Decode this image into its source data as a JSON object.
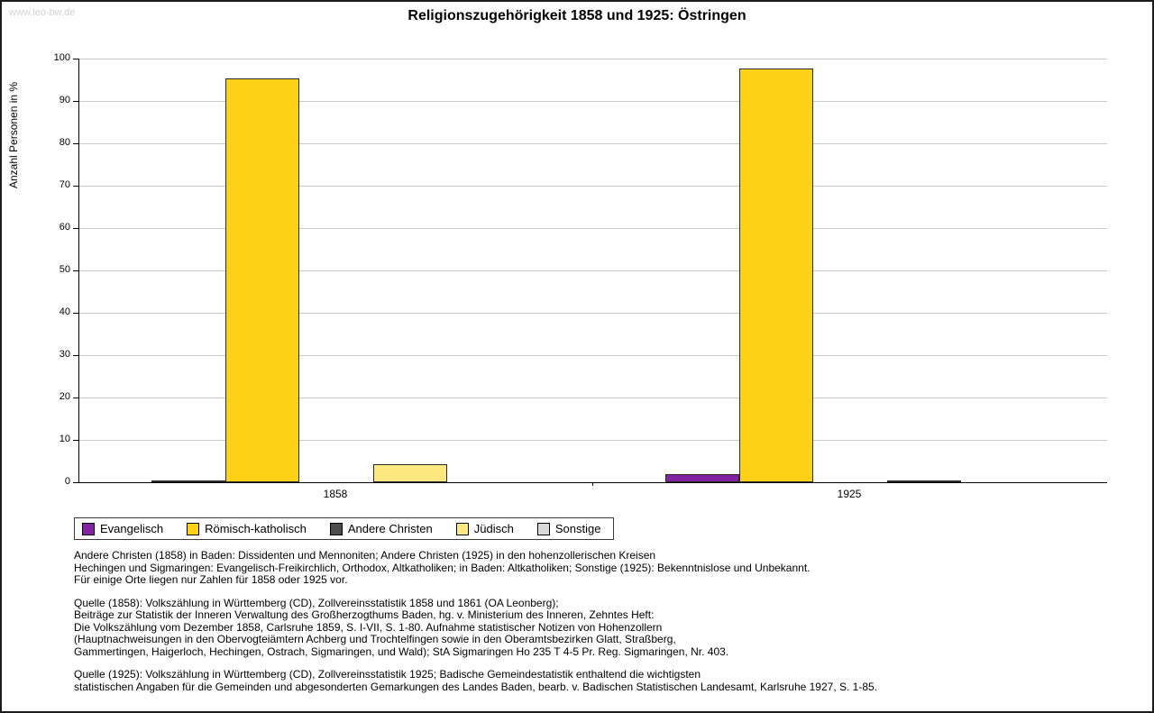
{
  "watermark": "www.leo-bw.de",
  "chart_data": {
    "type": "bar",
    "title": "Religionszugehörigkeit 1858 und 1925: Östringen",
    "xlabel": "",
    "ylabel": "Anzahl Personen in %",
    "ylim": [
      0,
      100
    ],
    "ytick_step": 10,
    "grid": true,
    "legend_position": "bottom-left",
    "categories": [
      "1858",
      "1925"
    ],
    "series": [
      {
        "name": "Evangelisch",
        "color": "#8224a0",
        "values": [
          0.5,
          1.9
        ]
      },
      {
        "name": "Römisch-katholisch",
        "color": "#fcd116",
        "values": [
          95.3,
          97.7
        ]
      },
      {
        "name": "Andere Christen",
        "color": "#4d4d4d",
        "values": [
          0,
          0
        ]
      },
      {
        "name": "Jüdisch",
        "color": "#fce87e",
        "values": [
          4.2,
          0.4
        ]
      },
      {
        "name": "Sonstige",
        "color": "#d9d9d9",
        "values": [
          0,
          0
        ]
      }
    ]
  },
  "footnotes": [
    "Andere Christen (1858) in Baden: Dissidenten und Mennoniten; Andere Christen (1925) in den hohenzollerischen Kreisen\nHechingen und Sigmaringen: Evangelisch-Freikirchlich, Orthodox, Altkatholiken; in Baden: Altkatholiken; Sonstige (1925): Bekenntnislose und Unbekannt.\nFür einige Orte liegen nur Zahlen für 1858 oder 1925 vor.",
    "Quelle (1858): Volkszählung in Württemberg (CD), Zollvereinsstatistik 1858 und 1861 (OA Leonberg);\nBeiträge zur Statistik der Inneren Verwaltung des Großherzogthums Baden, hg. v. Ministerium des Inneren, Zehntes Heft:\nDie Volkszählung vom Dezember 1858, Carlsruhe 1859, S. I-VII, S. 1-80. Aufnahme statistischer Notizen von Hohenzollern\n(Hauptnachweisungen in den Obervogteiämtern Achberg und Trochtelfingen sowie in den Oberamtsbezirken Glatt, Straßberg,\nGammertingen, Haigerloch, Hechingen, Ostrach, Sigmaringen, und Wald); StA Sigmaringen Ho 235 T 4-5 Pr. Reg. Sigmaringen, Nr. 403.",
    "Quelle (1925): Volkszählung in Württemberg (CD), Zollvereinsstatistik 1925; Badische Gemeindestatistik enthaltend die wichtigsten\nstatistischen Angaben für die Gemeinden und abgesonderten Gemarkungen des Landes Baden, bearb. v. Badischen Statistischen Landesamt, Karlsruhe 1927, S. 1-85."
  ]
}
